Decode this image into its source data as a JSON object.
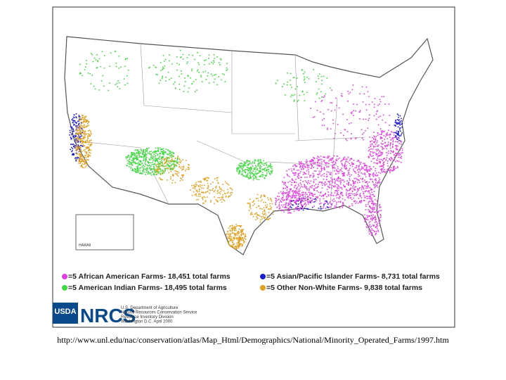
{
  "legend": [
    {
      "label": "=5 African American Farms- 18,451 total farms",
      "color": "#e040e0"
    },
    {
      "label": "=5 American Indian Farms- 18,495 total farms",
      "color": "#40d840"
    },
    {
      "label": "=5 Asian/Pacific Islander Farms- 8,731 total farms",
      "color": "#1a1ad0"
    },
    {
      "label": "=5 Other Non-White Farms- 9,838 total farms",
      "color": "#e0a020"
    }
  ],
  "inset": {
    "label": "HAWAII"
  },
  "footer": {
    "usda": "USDA",
    "nrcs": "NRCS",
    "agency_lines": [
      "U.S. Department of Agriculture",
      "Natural Resources Conservation Service",
      "Resource Inventory Division",
      "Washington D.C. April 2000"
    ]
  },
  "source_url": "http://www.unl.edu/nac/conservation/atlas/Map_Html/Demographics/National/Minority_Operated_Farms/1997.htm"
}
